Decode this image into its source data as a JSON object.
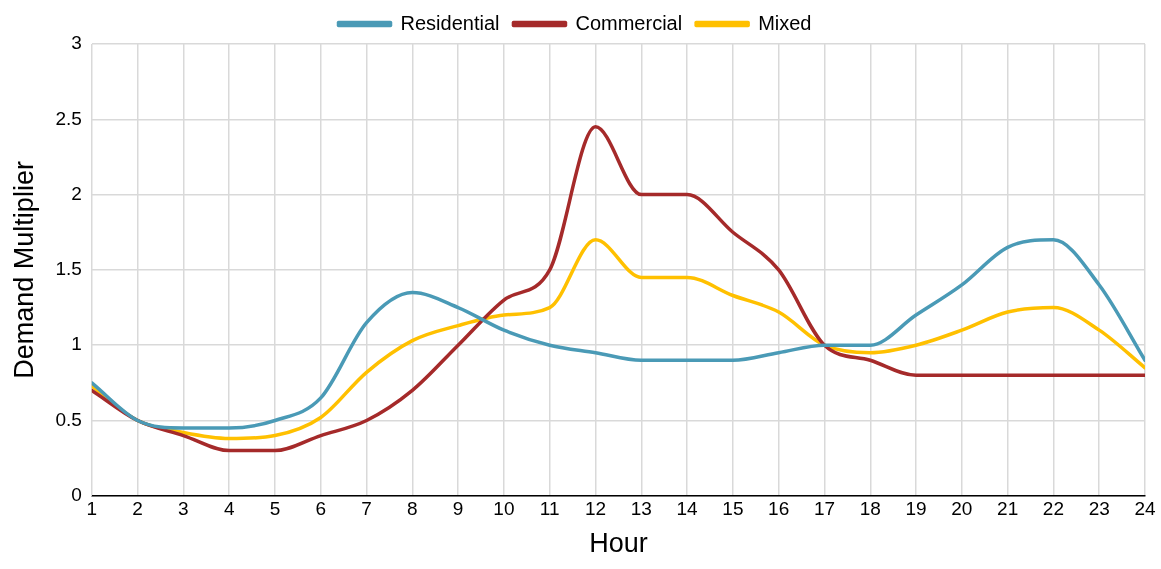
{
  "chart_data": {
    "type": "line",
    "xlabel": "Hour",
    "ylabel": "Demand Multiplier",
    "x": [
      1,
      2,
      3,
      4,
      5,
      6,
      7,
      8,
      9,
      10,
      11,
      12,
      13,
      14,
      15,
      16,
      17,
      18,
      19,
      20,
      21,
      22,
      23,
      24
    ],
    "xlim": [
      1,
      24
    ],
    "xticks": [
      1,
      2,
      3,
      4,
      5,
      6,
      7,
      8,
      9,
      10,
      11,
      12,
      13,
      14,
      15,
      16,
      17,
      18,
      19,
      20,
      21,
      22,
      23,
      24
    ],
    "ylim": [
      0,
      3
    ],
    "yticks": [
      0,
      0.5,
      1,
      1.5,
      2,
      2.5,
      3
    ],
    "grid": true,
    "legend": "top",
    "marker": "none",
    "line_style": "solid",
    "series": [
      {
        "name": "Residential",
        "color": "#4a9ab6",
        "values": [
          0.75,
          0.5,
          0.45,
          0.45,
          0.5,
          0.65,
          1.15,
          1.35,
          1.25,
          1.1,
          1.0,
          0.95,
          0.9,
          0.9,
          0.9,
          0.95,
          1.0,
          1.0,
          1.2,
          1.4,
          1.65,
          1.7,
          1.4,
          0.9
        ]
      },
      {
        "name": "Commercial",
        "color": "#a52a2a",
        "values": [
          0.7,
          0.5,
          0.4,
          0.3,
          0.3,
          0.4,
          0.5,
          0.7,
          1.0,
          1.3,
          1.5,
          2.45,
          2.0,
          2.0,
          1.75,
          1.5,
          1.0,
          0.9,
          0.8,
          0.8,
          0.8,
          0.8,
          0.8,
          0.8
        ]
      },
      {
        "name": "Mixed",
        "color": "#ffc000",
        "values": [
          0.73,
          0.5,
          0.42,
          0.38,
          0.4,
          0.52,
          0.82,
          1.03,
          1.13,
          1.2,
          1.25,
          1.7,
          1.45,
          1.45,
          1.33,
          1.22,
          1.0,
          0.95,
          1.0,
          1.1,
          1.22,
          1.25,
          1.1,
          0.85
        ]
      }
    ]
  }
}
